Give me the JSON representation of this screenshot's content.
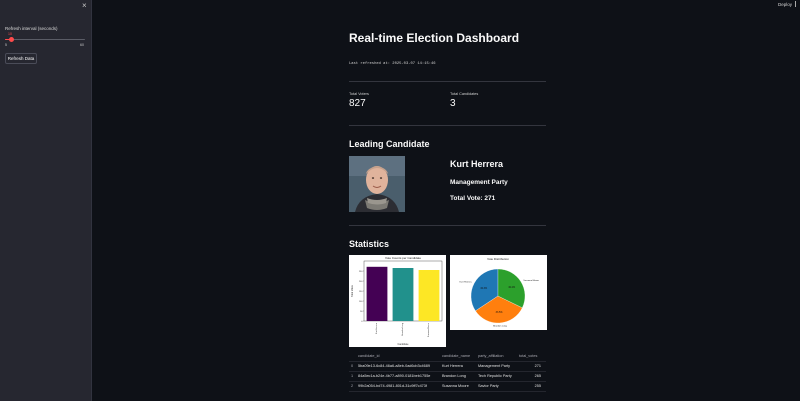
{
  "sidebar": {
    "close_symbol": "×",
    "slider_label": "Refresh interval (seconds)",
    "slider_value": "10",
    "slider_min": "5",
    "slider_max": "60",
    "slider_fraction": 0.09,
    "refresh_button": "Refresh Data"
  },
  "header": {
    "deploy_label": "Deploy",
    "menu_icon": "kebab-menu-icon"
  },
  "main": {
    "title": "Real-time Election Dashboard",
    "last_refreshed": "Last refreshed at: 2025-03-07 14:15:46",
    "metrics": [
      {
        "label": "Total Voters",
        "value": "827"
      },
      {
        "label": "Total Candidates",
        "value": "3"
      }
    ],
    "leading_heading": "Leading Candidate",
    "leading": {
      "name": "Kurt Herrera",
      "party": "Management Party",
      "votes": "Total Vote: 271"
    },
    "statistics_heading": "Statistics"
  },
  "chart_data": [
    {
      "type": "bar",
      "title": "Vote Counts per Candidate",
      "xlabel": "Candidate",
      "ylabel": "Total Votes",
      "categories": [
        "Kurt Herrera",
        "Brandon Long",
        "Susanna Moore"
      ],
      "values": [
        271,
        265,
        255
      ],
      "colors": [
        "#440154",
        "#21918c",
        "#fde725"
      ]
    },
    {
      "type": "pie",
      "title": "Vote Distribution",
      "categories": [
        "Kurt Herrera",
        "Brandon Long",
        "Susanna Moore"
      ],
      "values": [
        34.3,
        33.5,
        32.2
      ],
      "labels": [
        "34.3%",
        "33.5%",
        "32.2%"
      ],
      "colors": [
        "#1f77b4",
        "#ff7f0e",
        "#2ca02c"
      ]
    }
  ],
  "table": {
    "headers": [
      "",
      "candidate_id",
      "candidate_name",
      "party_affiliation",
      "total_votes"
    ],
    "rows": [
      [
        "0",
        "5ba09e13-6c84-46a6-a8eb-0ad6cb3c4689",
        "Kurt Herrera",
        "Management Party",
        "271"
      ],
      [
        "1",
        "84a5ec1a-b24e-4b77-a890-0181beb1755e",
        "Brandon Long",
        "Tech Republic Party",
        "265"
      ],
      [
        "2",
        "99b2a054-bd74-4981-801d-31c9ff7c473f",
        "Susanna Moore",
        "Savior Party",
        "255"
      ]
    ]
  }
}
